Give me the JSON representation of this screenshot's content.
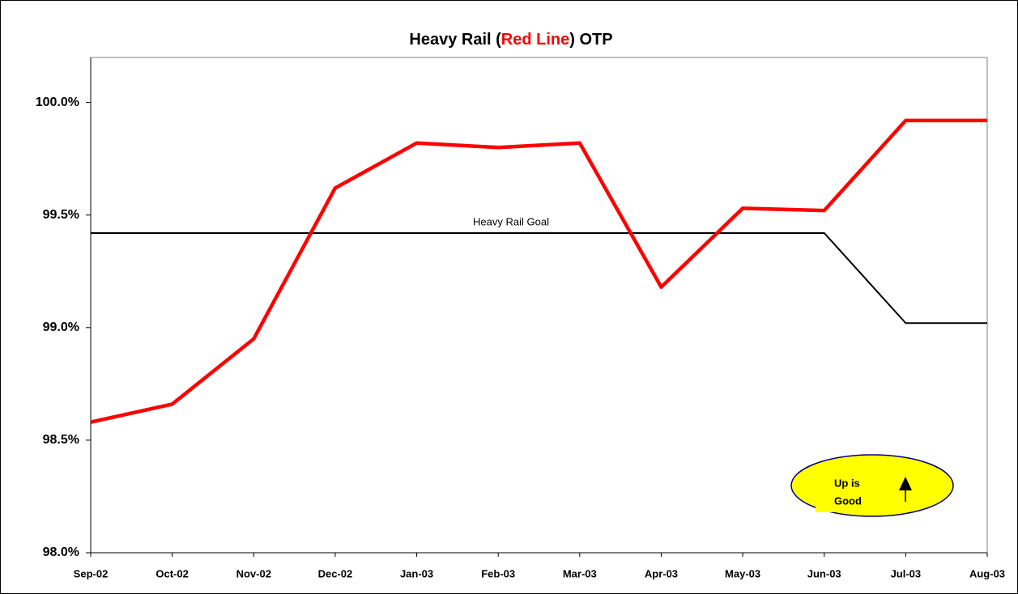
{
  "chart_data": {
    "type": "line",
    "title_segments": [
      {
        "text": "Heavy Rail (",
        "color": "#000000"
      },
      {
        "text": "Red Line",
        "color": "#ff0000"
      },
      {
        "text": ") OTP",
        "color": "#000000"
      }
    ],
    "categories": [
      "Sep-02",
      "Oct-02",
      "Nov-02",
      "Dec-02",
      "Jan-03",
      "Feb-03",
      "Mar-03",
      "Apr-03",
      "May-03",
      "Jun-03",
      "Jul-03",
      "Aug-03"
    ],
    "series": [
      {
        "color": "#ff0000",
        "values": [
          98.58,
          98.66,
          98.95,
          99.62,
          99.82,
          99.8,
          99.82,
          99.18,
          99.53,
          99.52,
          99.92,
          99.92
        ]
      },
      {
        "name": "Heavy Rail Goal",
        "color": "#000000",
        "values": [
          99.42,
          99.42,
          99.42,
          99.42,
          99.42,
          99.42,
          99.42,
          99.42,
          99.42,
          99.42,
          99.02,
          99.02
        ]
      }
    ],
    "ylim": [
      98,
      100.2
    ],
    "yticks": [
      {
        "value": 98,
        "label": "98.0%"
      },
      {
        "value": 98.5,
        "label": "98.5%"
      },
      {
        "value": 99,
        "label": "99.0%"
      },
      {
        "value": 99.5,
        "label": "99.5%"
      },
      {
        "value": 100,
        "label": "100.0%"
      }
    ],
    "callout_lines": [
      "Up is",
      "Good"
    ]
  }
}
